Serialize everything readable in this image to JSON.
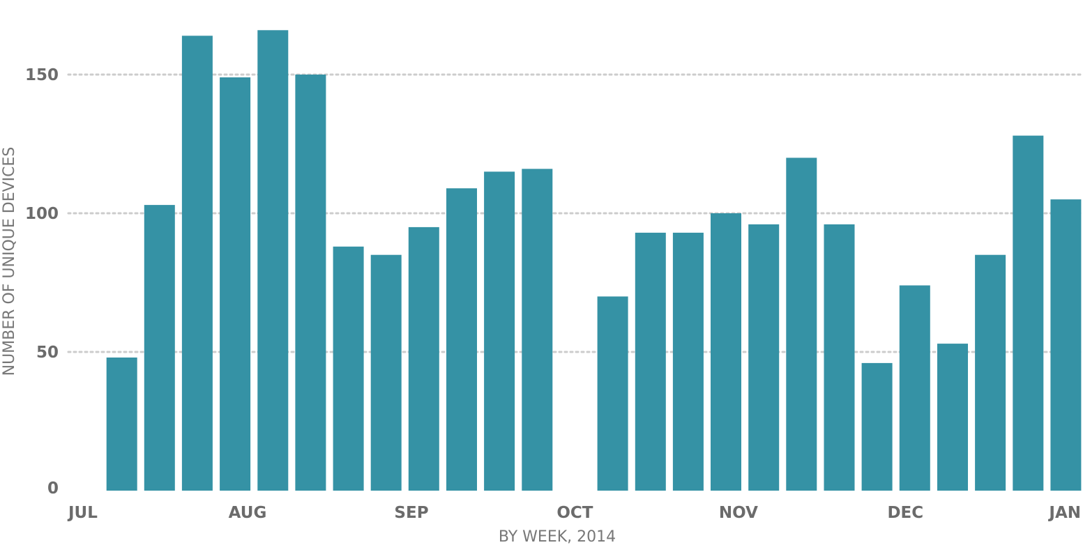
{
  "chart_data": {
    "type": "bar",
    "title": "",
    "xlabel": "BY WEEK, 2014",
    "ylabel": "NUMBER OF UNIQUE DEVICES",
    "ylim": [
      0,
      160
    ],
    "yticks": [
      0,
      50,
      100,
      150
    ],
    "grid": true,
    "bar_color": "#3592a5",
    "x_tick_labels": [
      "JUL",
      "AUG",
      "SEP",
      "OCT",
      "NOV",
      "DEC",
      "JAN"
    ],
    "series": [
      {
        "values": [
          0,
          48,
          103,
          164,
          149,
          166,
          150,
          88,
          85,
          95,
          109,
          115,
          116,
          0,
          70,
          93,
          93,
          100,
          96,
          120,
          96,
          46,
          74,
          53,
          85,
          128,
          105
        ]
      }
    ]
  }
}
